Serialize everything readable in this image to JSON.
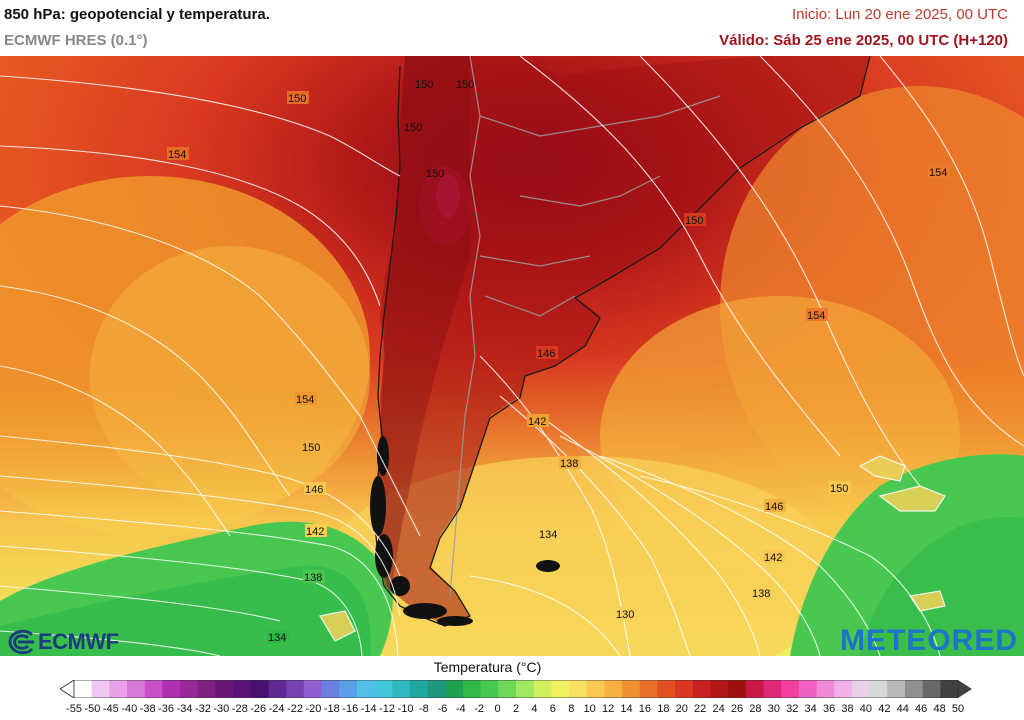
{
  "header": {
    "title": "850 hPa: geopotencial y temperatura.",
    "model": "ECMWF HRES (0.1°)",
    "init": "Inicio: Lun 20 ene 2025, 00 UTC",
    "valid": "Válido: Sáb 25 ene 2025, 00 UTC (H+120)"
  },
  "map": {
    "isohypse_labels": [
      "150",
      "154",
      "150",
      "150",
      "150",
      "150",
      "154",
      "154",
      "150",
      "154",
      "146",
      "142",
      "138",
      "154",
      "150",
      "146",
      "142",
      "138",
      "134",
      "134",
      "146",
      "150",
      "142",
      "138",
      "130",
      "134"
    ]
  },
  "legend": {
    "title": "Temperatura (°C)",
    "labels": [
      "-55",
      "-50",
      "-45",
      "-40",
      "-38",
      "-36",
      "-34",
      "-32",
      "-30",
      "-28",
      "-26",
      "-24",
      "-22",
      "-20",
      "-18",
      "-16",
      "-14",
      "-12",
      "-10",
      "-8",
      "-6",
      "-4",
      "-2",
      "0",
      "2",
      "4",
      "6",
      "8",
      "10",
      "12",
      "14",
      "16",
      "18",
      "20",
      "22",
      "24",
      "26",
      "28",
      "30",
      "32",
      "34",
      "36",
      "38",
      "40",
      "42",
      "44",
      "46",
      "48",
      "50"
    ],
    "colors": [
      "#ffffff",
      "#f2c6f2",
      "#e8a0e8",
      "#d878d8",
      "#c850c8",
      "#b030b0",
      "#962898",
      "#802080",
      "#6a1878",
      "#5a1478",
      "#4a1070",
      "#602890",
      "#7840b0",
      "#9060d0",
      "#6a80e0",
      "#5aa0e8",
      "#50c0e8",
      "#40c8d8",
      "#30b8c0",
      "#20a8a0",
      "#209880",
      "#20a050",
      "#30b848",
      "#48c850",
      "#70d858",
      "#a0e860",
      "#d0f060",
      "#f0f060",
      "#f8e060",
      "#f8c850",
      "#f8b040",
      "#f09030",
      "#e87028",
      "#e05020",
      "#d83820",
      "#c82020",
      "#b01818",
      "#a01010",
      "#c81848",
      "#e02878",
      "#f040a0",
      "#f060c0",
      "#f088d8",
      "#f0b0e8",
      "#e8d0e8",
      "#d8d8d8",
      "#b8b8b8",
      "#909090",
      "#686868",
      "#404040"
    ]
  },
  "logos": {
    "left": "ECMWF",
    "right": "METEORED"
  }
}
